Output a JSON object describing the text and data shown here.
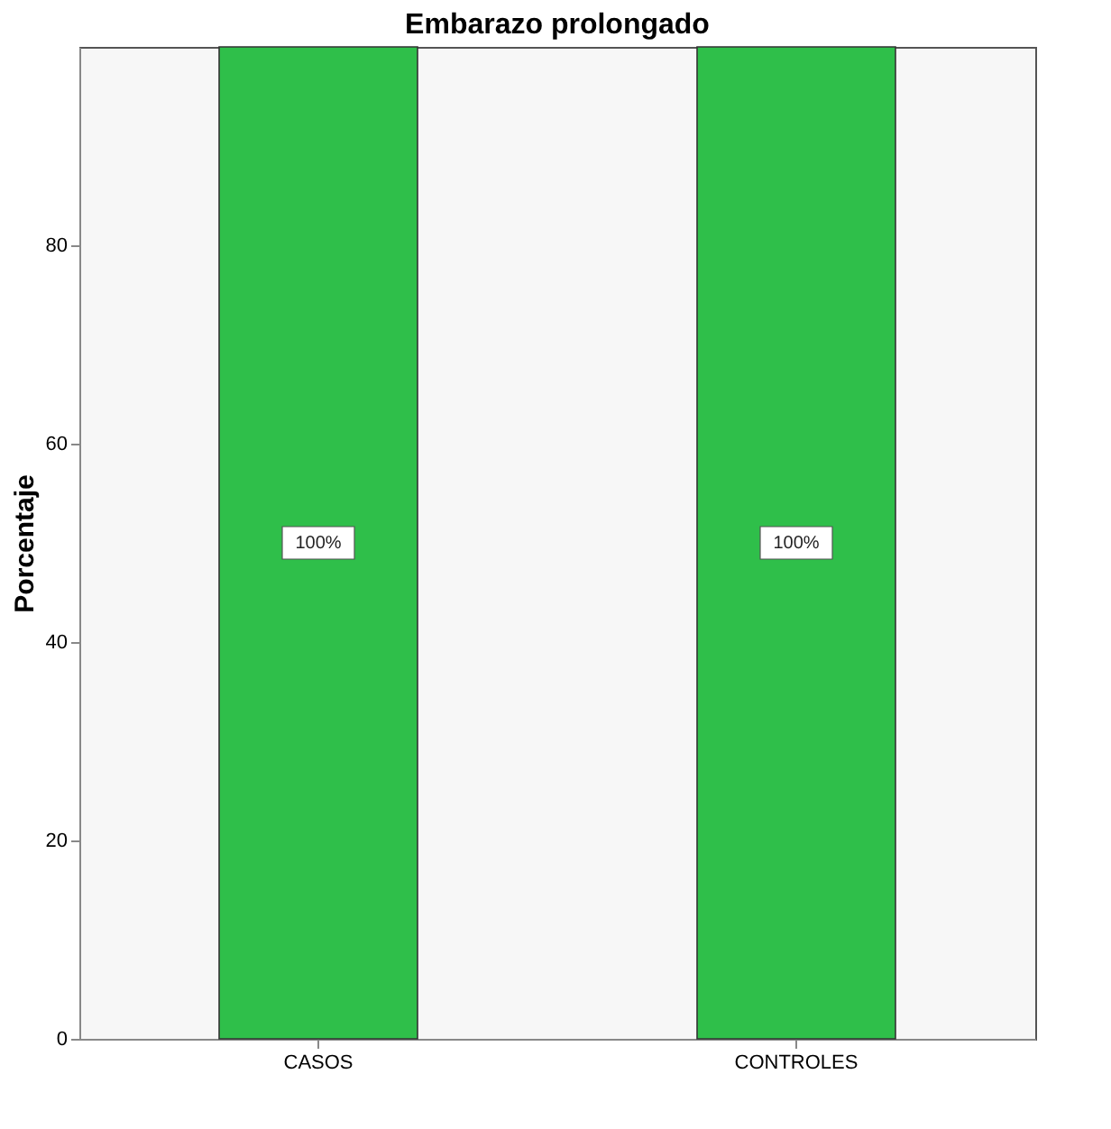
{
  "chart_data": {
    "type": "bar",
    "title": "Embarazo prolongado",
    "ylabel": "Porcentaje",
    "categories": [
      "CASOS",
      "CONTROLES"
    ],
    "values": [
      100,
      100
    ],
    "color": "#2fbf4a",
    "value_labels": [
      "100%",
      "100%"
    ],
    "ylim": [
      0,
      100
    ],
    "yticks": [
      0,
      20,
      40,
      60,
      80
    ],
    "grid": false
  }
}
